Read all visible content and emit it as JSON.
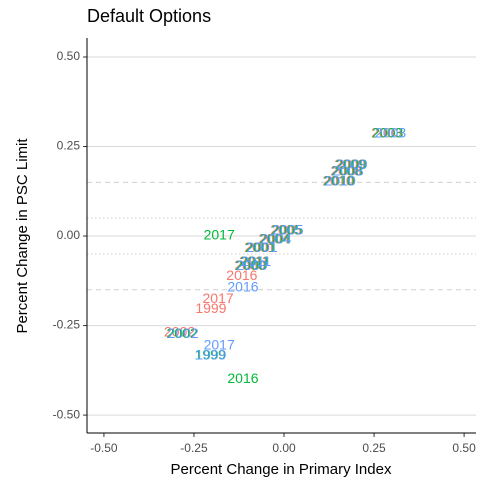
{
  "chart_data": {
    "type": "text-scatter",
    "title": "Default Options",
    "x_label": "Percent Change in Primary Index",
    "y_label": "Percent Change in PSC Limit",
    "xlim": [
      -0.547,
      0.533
    ],
    "ylim": [
      -0.55,
      0.553
    ],
    "xticks": [
      {
        "value": -0.5,
        "label": "-0.50"
      },
      {
        "value": -0.25,
        "label": "-0.25"
      },
      {
        "value": 0,
        "label": "0.00"
      },
      {
        "value": 0.25,
        "label": "0.25"
      },
      {
        "value": 0.5,
        "label": "0.50"
      }
    ],
    "yticks": [
      {
        "value": -0.5,
        "label": "-0.50"
      },
      {
        "value": -0.25,
        "label": "-0.25"
      },
      {
        "value": 0,
        "label": "0.00"
      },
      {
        "value": 0.25,
        "label": "0.25"
      },
      {
        "value": 0.5,
        "label": "0.50"
      }
    ],
    "grid": true,
    "reference_lines": [
      {
        "value": 0.15,
        "style": "dashed"
      },
      {
        "value": -0.15,
        "style": "dashed"
      },
      {
        "value": 0.05,
        "style": "dotted"
      },
      {
        "value": -0.05,
        "style": "dotted"
      }
    ],
    "series": [
      {
        "color": "#F8766D",
        "labels": [
          "2003",
          "2009",
          "2008",
          "2010",
          "2005",
          "2004",
          "2001",
          "2011",
          "2000",
          "2016",
          "2017",
          "1999",
          "2002"
        ],
        "x": [
          0.285,
          0.183,
          0.172,
          0.15,
          0.005,
          -0.028,
          -0.067,
          -0.083,
          -0.095,
          -0.117,
          -0.183,
          -0.203,
          -0.29
        ],
        "y": [
          0.285,
          0.198,
          0.179,
          0.151,
          0.014,
          -0.011,
          -0.034,
          -0.073,
          -0.084,
          -0.112,
          -0.176,
          -0.204,
          -0.27
        ]
      },
      {
        "color": "#00BA38",
        "labels": [
          "2003",
          "2009",
          "2008",
          "2010",
          "2005",
          "2004",
          "2001",
          "2011",
          "2000",
          "2017",
          "2016",
          "1999",
          "2002"
        ],
        "x": [
          0.288,
          0.186,
          0.175,
          0.153,
          0.008,
          -0.025,
          -0.064,
          -0.08,
          -0.092,
          -0.18,
          -0.114,
          -0.205,
          -0.283
        ],
        "y": [
          0.285,
          0.198,
          0.179,
          0.151,
          0.014,
          -0.011,
          -0.034,
          -0.073,
          -0.084,
          0.0,
          -0.4,
          -0.335,
          -0.274
        ]
      },
      {
        "color": "#619CFF",
        "labels": [
          "2003",
          "2009",
          "2008",
          "2010",
          "2005",
          "2004",
          "2001",
          "2011",
          "2000",
          "2016",
          "2017",
          "1999",
          "2002"
        ],
        "x": [
          0.296,
          0.189,
          0.178,
          0.156,
          0.011,
          -0.022,
          -0.061,
          -0.077,
          -0.089,
          -0.114,
          -0.18,
          -0.203,
          -0.28
        ],
        "y": [
          0.285,
          0.198,
          0.179,
          0.151,
          0.014,
          -0.011,
          -0.034,
          -0.073,
          -0.084,
          -0.145,
          -0.307,
          -0.335,
          -0.274
        ]
      }
    ]
  }
}
